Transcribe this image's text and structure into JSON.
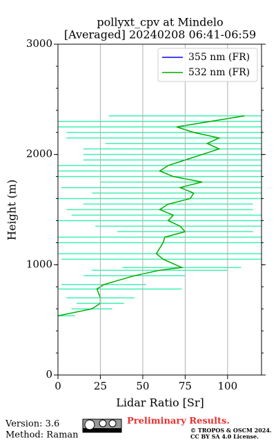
{
  "chart_data": {
    "type": "line",
    "title": "pollyxt_cpv at Mindelo",
    "subtitle": "[Averaged] 20240208 06:41-06:59",
    "x_label": "Lidar Ratio [Sr]",
    "y_label": "Height (m)",
    "y": [
      537,
      600,
      650,
      700,
      780,
      820,
      900,
      950,
      975,
      1050,
      1100,
      1200,
      1250,
      1300,
      1350,
      1400,
      1450,
      1500,
      1550,
      1600,
      1650,
      1700,
      1750,
      1800,
      1850,
      1900,
      1950,
      2000,
      2050,
      2100,
      2150,
      2200,
      2250,
      2300,
      2350
    ],
    "series": [
      {
        "name": "355 nm (FR)",
        "color": "#0000ff",
        "values": []
      },
      {
        "name": "532 nm (FR)",
        "color": "#00aa00",
        "values": [
          0,
          20,
          25,
          25,
          23,
          27,
          45,
          60,
          73,
          62,
          58,
          62,
          63,
          75,
          72,
          65,
          68,
          60,
          65,
          78,
          80,
          72,
          85,
          68,
          60,
          65,
          75,
          85,
          95,
          88,
          95,
          80,
          70,
          90,
          110
        ],
        "errors": [
          10,
          12,
          14,
          20,
          50,
          25,
          30,
          40,
          35,
          60,
          80,
          70,
          90,
          40,
          50,
          70,
          60,
          55,
          50,
          90,
          60,
          70,
          60,
          100,
          80,
          85,
          60,
          70,
          80,
          60,
          90,
          75,
          70,
          95,
          80
        ],
        "error_color": "#40f0b0"
      }
    ],
    "xlim": [
      0,
      120
    ],
    "ylim": [
      0,
      3000
    ],
    "xticks": [
      0,
      25,
      50,
      75,
      100
    ],
    "yticks": [
      0,
      1000,
      2000,
      3000
    ],
    "grid": true,
    "legend": "upper right",
    "footer": {
      "version": "Version: 3.6",
      "method": "Method: Raman",
      "notice": "Preliminary Results.",
      "copyright": "© TROPOS & OSCM 2024.",
      "license": "CC BY SA 4.0 License."
    }
  }
}
